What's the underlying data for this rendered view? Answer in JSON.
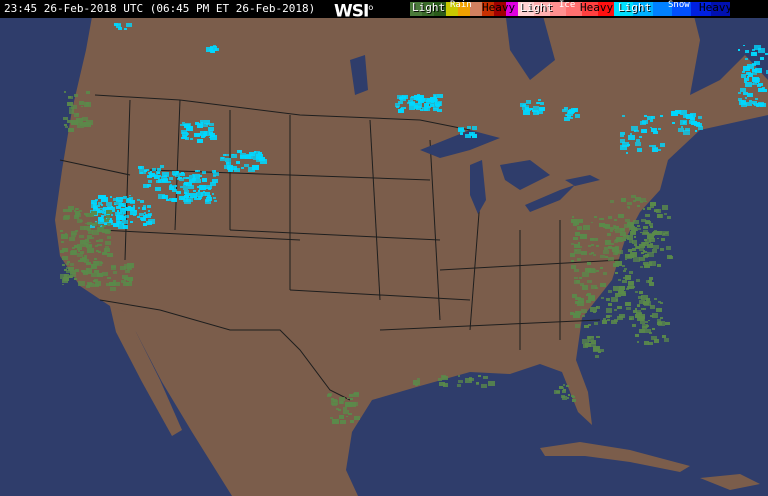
{
  "header": {
    "timestamp": "23:45 26-Feb-2018 UTC  (06:45 PM ET 26-Feb-2018)",
    "logo": "WSI"
  },
  "legend": {
    "rain": {
      "label": "Rain",
      "light": "Light",
      "heavy": "Heavy",
      "colors": [
        "#4a7a3a",
        "#3a6a2a",
        "#2a5a1a",
        "#c8c800",
        "#f0a000",
        "#d08060",
        "#c83000",
        "#a00000",
        "#e000e0"
      ]
    },
    "ice": {
      "label": "Ice",
      "light": "Light",
      "heavy": "Heavy",
      "colors": [
        "#ffd0d0",
        "#ffb0b0",
        "#ff9090",
        "#ff7070",
        "#ff4040",
        "#ff1010"
      ]
    },
    "snow": {
      "label": "Snow",
      "light": "Light",
      "heavy": "Heavy",
      "colors": [
        "#00e0ff",
        "#00b0ff",
        "#0080ff",
        "#0050ff",
        "#0020e0",
        "#0010b0"
      ]
    }
  },
  "map": {
    "ocean_color": "#2f3d6b",
    "land_color": "#7b5d4b",
    "border_color": "#1e1e1e",
    "rain_color": "#5a8a4a",
    "snow_color": "#00d8ff"
  }
}
